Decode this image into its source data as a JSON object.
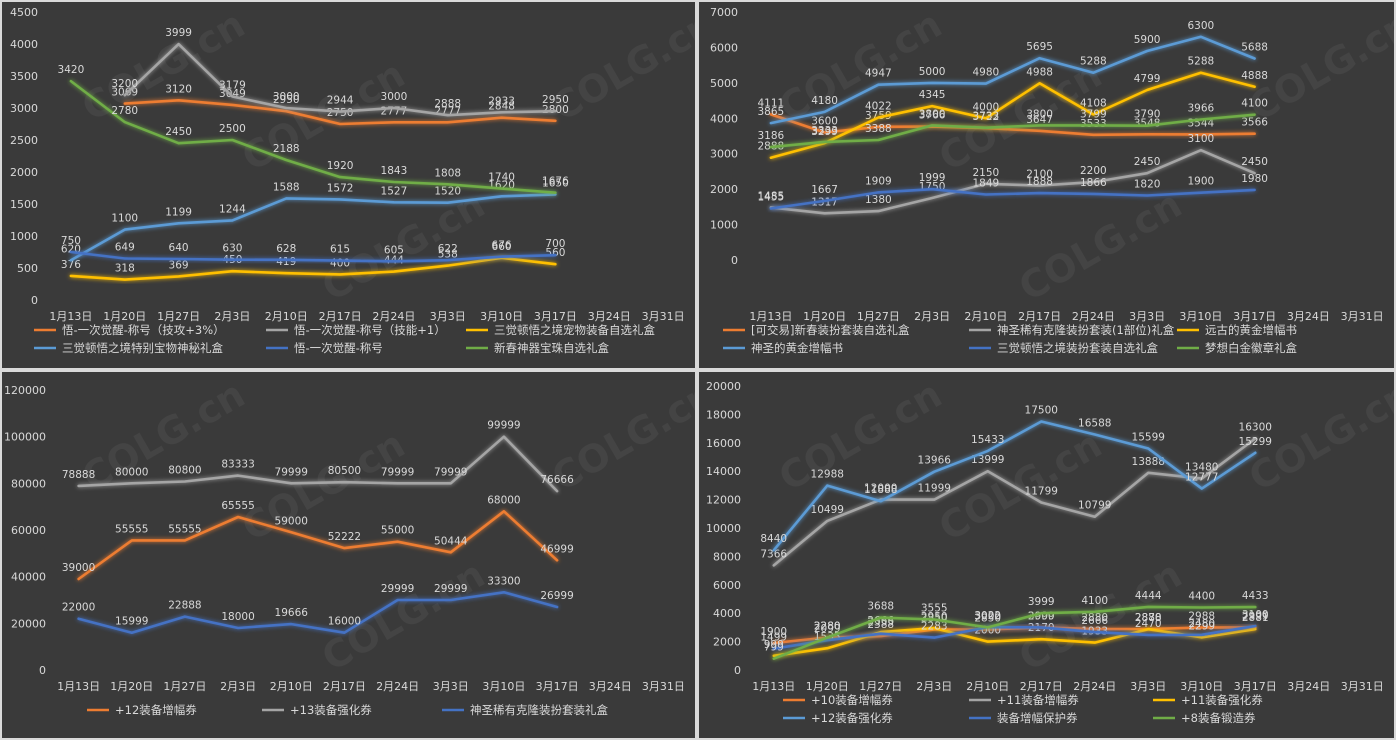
{
  "x_labels": [
    "1月13日",
    "1月20日",
    "1月27日",
    "2月3日",
    "2月10日",
    "2月17日",
    "2月24日",
    "3月3日",
    "3月10日",
    "3月17日",
    "3月24日",
    "3月31日"
  ],
  "watermark": "COLG.cn",
  "chart_data": [
    {
      "type": "line",
      "ylim": [
        0,
        4500
      ],
      "yticks": [
        0,
        500,
        1000,
        1500,
        2000,
        2500,
        3000,
        3500,
        4000,
        4500
      ],
      "legend_position": "bottom",
      "categories": [
        "1月13日",
        "1月20日",
        "1月27日",
        "2月3日",
        "2月10日",
        "2月17日",
        "2月24日",
        "3月3日",
        "3月10日",
        "3月17日",
        "3月24日",
        "3月31日"
      ],
      "series": [
        {
          "name": "悟-一次觉醒-称号（技攻+3%）",
          "color": "#ed7d31",
          "values": [
            null,
            3069,
            3120,
            3049,
            2950,
            2750,
            2777,
            2777,
            2848,
            2800,
            null,
            null
          ]
        },
        {
          "name": "悟-一次觉醒-称号（技能+1）",
          "color": "#a5a5a5",
          "values": [
            null,
            3200,
            3999,
            3179,
            3000,
            2944,
            3000,
            2888,
            2933,
            2950,
            null,
            null
          ]
        },
        {
          "name": "三觉顿悟之境宠物装备自选礼盒",
          "color": "#ffc000",
          "values": [
            376,
            318,
            369,
            450,
            419,
            400,
            444,
            538,
            660,
            560,
            null,
            null
          ]
        },
        {
          "name": "三觉顿悟之境特别宝物神秘礼盒",
          "color": "#5b9bd5",
          "values": [
            620,
            1100,
            1199,
            1244,
            1588,
            1572,
            1527,
            1520,
            1620,
            1650,
            null,
            null
          ]
        },
        {
          "name": "悟-一次觉醒-称号",
          "color": "#4472c4",
          "values": [
            750,
            649,
            640,
            630,
            628,
            615,
            605,
            622,
            676,
            700,
            null,
            null
          ]
        },
        {
          "name": "新春神器宝珠自选礼盒",
          "color": "#70ad47",
          "values": [
            3420,
            2780,
            2450,
            2500,
            2188,
            1920,
            1843,
            1808,
            1740,
            1676,
            null,
            null
          ]
        }
      ]
    },
    {
      "type": "line",
      "ylim": [
        0,
        7000
      ],
      "yticks": [
        0,
        1000,
        2000,
        3000,
        4000,
        5000,
        6000,
        7000
      ],
      "legend_position": "bottom",
      "categories": [
        "1月13日",
        "1月20日",
        "1月27日",
        "2月3日",
        "2月10日",
        "2月17日",
        "2月24日",
        "3月3日",
        "3月10日",
        "3月17日",
        "3月24日",
        "3月31日"
      ],
      "series": [
        {
          "name": "[可交易]新春装扮套装自选礼盒",
          "color": "#ed7d31",
          "values": [
            4111,
            3600,
            3759,
            3766,
            3722,
            3647,
            3533,
            3548,
            3544,
            3566,
            null,
            null
          ]
        },
        {
          "name": "神圣稀有克隆装扮套装(1部位)礼盒",
          "color": "#a5a5a5",
          "values": [
            1485,
            1317,
            1380,
            1750,
            2150,
            2100,
            2200,
            2450,
            3100,
            2450,
            null,
            null
          ]
        },
        {
          "name": "远古的黄金增幅书",
          "color": "#ffc000",
          "values": [
            2888,
            3299,
            4022,
            4345,
            4000,
            4988,
            4108,
            4799,
            5288,
            4888,
            null,
            null
          ]
        },
        {
          "name": "神圣的黄金增幅书",
          "color": "#5b9bd5",
          "values": [
            3865,
            4180,
            4947,
            5000,
            4980,
            5695,
            5288,
            5900,
            6300,
            5688,
            null,
            null
          ]
        },
        {
          "name": "三觉顿悟之境装扮套装自选礼盒",
          "color": "#4472c4",
          "values": [
            1455,
            1667,
            1909,
            1999,
            1849,
            1888,
            1866,
            1820,
            1900,
            1980,
            null,
            null
          ]
        },
        {
          "name": "梦想白金徽章礼盒",
          "color": "#70ad47",
          "values": [
            3186,
            3333,
            3388,
            3800,
            3733,
            3800,
            3799,
            3790,
            3966,
            4100,
            null,
            null
          ]
        }
      ]
    },
    {
      "type": "line",
      "ylim": [
        0,
        120000
      ],
      "yticks": [
        0,
        20000,
        40000,
        60000,
        80000,
        100000,
        120000
      ],
      "legend_position": "bottom",
      "categories": [
        "1月13日",
        "1月20日",
        "1月27日",
        "2月3日",
        "2月10日",
        "2月17日",
        "2月24日",
        "3月3日",
        "3月10日",
        "3月17日",
        "3月24日",
        "3月31日"
      ],
      "series": [
        {
          "name": "+12装备增幅券",
          "color": "#ed7d31",
          "values": [
            39000,
            55555,
            55555,
            65555,
            59000,
            52222,
            55000,
            50444,
            68000,
            46999,
            null,
            null
          ]
        },
        {
          "name": "+13装备强化券",
          "color": "#a5a5a5",
          "values": [
            78888,
            80000,
            80800,
            83333,
            79999,
            80500,
            79999,
            79999,
            99999,
            76666,
            null,
            null
          ]
        },
        {
          "name": "神圣稀有克隆装扮套装礼盒",
          "color": "#4472c4",
          "values": [
            22000,
            15999,
            22888,
            18000,
            19666,
            16000,
            29999,
            29999,
            33300,
            26999,
            null,
            null
          ]
        }
      ]
    },
    {
      "type": "line",
      "ylim": [
        0,
        20000
      ],
      "yticks": [
        0,
        2000,
        4000,
        6000,
        8000,
        10000,
        12000,
        14000,
        16000,
        18000,
        20000
      ],
      "legend_position": "bottom",
      "categories": [
        "1月13日",
        "1月20日",
        "1月27日",
        "2月3日",
        "2月10日",
        "2月17日",
        "2月24日",
        "3月3日",
        "3月10日",
        "3月17日",
        "3月24日",
        "3月31日"
      ],
      "series": [
        {
          "name": "+10装备增幅券",
          "color": "#ed7d31",
          "values": [
            1900,
            2280,
            2388,
            2850,
            2850,
            3000,
            2880,
            2888,
            2988,
            2999,
            null,
            null
          ]
        },
        {
          "name": "+11装备增幅券",
          "color": "#a5a5a5",
          "values": [
            7366,
            10499,
            12000,
            11999,
            13999,
            11799,
            10799,
            13888,
            13480,
            16300,
            null,
            null
          ]
        },
        {
          "name": "+11装备强化券",
          "color": "#ffc000",
          "values": [
            999,
            1535,
            2666,
            2950,
            2000,
            2170,
            1933,
            2870,
            2299,
            2881,
            null,
            null
          ]
        },
        {
          "name": "+12装备强化券",
          "color": "#5b9bd5",
          "values": [
            8440,
            12988,
            11888,
            13966,
            15433,
            17500,
            16588,
            15599,
            12777,
            15299,
            null,
            null
          ]
        },
        {
          "name": "装备增幅保护券",
          "color": "#4472c4",
          "values": [
            1499,
            2099,
            2555,
            2283,
            3022,
            2999,
            2666,
            2470,
            2480,
            3100,
            null,
            null
          ]
        },
        {
          "name": "+8装备锻造券",
          "color": "#70ad47",
          "values": [
            799,
            2280,
            3688,
            3555,
            3000,
            3999,
            4100,
            4444,
            4400,
            4433,
            null,
            null
          ]
        }
      ]
    }
  ]
}
